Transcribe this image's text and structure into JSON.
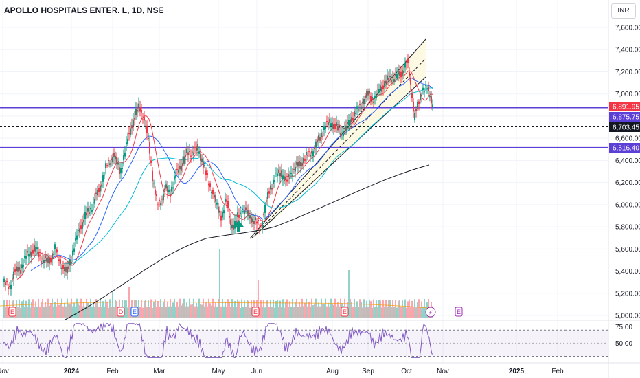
{
  "header": {
    "title": "APOLLO HOSPITALS ENTER. L, 1D, NSE",
    "currency": "INR"
  },
  "chart_data": {
    "type": "candlestick",
    "price_axis": {
      "ticks": [
        "7,600.00",
        "7,400.00",
        "7,200.00",
        "7,000.00",
        "6,800.00",
        "6,600.00",
        "6,400.00",
        "6,200.00",
        "6,000.00",
        "5,800.00",
        "5,600.00",
        "5,400.00",
        "5,200.00",
        "5,000.00"
      ],
      "range": [
        4980,
        7720
      ]
    },
    "rsi_axis": {
      "ticks": [
        "75.00",
        "50.00"
      ],
      "range": [
        20,
        85
      ]
    },
    "time_axis": [
      {
        "label": "Nov",
        "bold": false
      },
      {
        "label": "2024",
        "bold": true
      },
      {
        "label": "Feb",
        "bold": false
      },
      {
        "label": "Mar",
        "bold": false
      },
      {
        "label": "May",
        "bold": false
      },
      {
        "label": "Jun",
        "bold": false
      },
      {
        "label": "Aug",
        "bold": false
      },
      {
        "label": "Sep",
        "bold": false
      },
      {
        "label": "Oct",
        "bold": false
      },
      {
        "label": "Nov",
        "bold": false
      },
      {
        "label": "2025",
        "bold": true
      },
      {
        "label": "Feb",
        "bold": false
      }
    ],
    "price_labels": [
      {
        "value": "6,891.95",
        "color": "#f23645"
      },
      {
        "value": "6,875.75",
        "color": "#5b3fd6"
      },
      {
        "value": "6,703.45",
        "color": "#131722"
      },
      {
        "value": "6,516.40",
        "color": "#5b3fd6"
      }
    ],
    "levels": {
      "resistance_1": 6875.75,
      "dashed_level": 6703.45,
      "support_1": 6516.4
    },
    "price_path": [
      [
        0,
        5300
      ],
      [
        8,
        5250
      ],
      [
        15,
        5380
      ],
      [
        25,
        5430
      ],
      [
        35,
        5550
      ],
      [
        45,
        5600
      ],
      [
        55,
        5520
      ],
      [
        65,
        5480
      ],
      [
        75,
        5600
      ],
      [
        85,
        5450
      ],
      [
        92,
        5380
      ],
      [
        100,
        5550
      ],
      [
        110,
        5780
      ],
      [
        120,
        5900
      ],
      [
        130,
        6000
      ],
      [
        140,
        6150
      ],
      [
        150,
        6350
      ],
      [
        160,
        6450
      ],
      [
        170,
        6300
      ],
      [
        178,
        6500
      ],
      [
        185,
        6700
      ],
      [
        192,
        6800
      ],
      [
        198,
        6900
      ],
      [
        205,
        6750
      ],
      [
        212,
        6550
      ],
      [
        218,
        6200
      ],
      [
        224,
        6000
      ],
      [
        230,
        6050
      ],
      [
        236,
        6150
      ],
      [
        242,
        6100
      ],
      [
        250,
        6250
      ],
      [
        258,
        6350
      ],
      [
        266,
        6450
      ],
      [
        274,
        6480
      ],
      [
        282,
        6500
      ],
      [
        290,
        6400
      ],
      [
        298,
        6200
      ],
      [
        306,
        6100
      ],
      [
        312,
        5950
      ],
      [
        318,
        5900
      ],
      [
        324,
        6050
      ],
      [
        330,
        5850
      ],
      [
        336,
        5800
      ],
      [
        342,
        5900
      ],
      [
        350,
        5950
      ],
      [
        358,
        5900
      ],
      [
        366,
        5850
      ],
      [
        374,
        5800
      ],
      [
        380,
        5950
      ],
      [
        388,
        6150
      ],
      [
        396,
        6250
      ],
      [
        404,
        6300
      ],
      [
        412,
        6200
      ],
      [
        420,
        6300
      ],
      [
        428,
        6350
      ],
      [
        436,
        6400
      ],
      [
        444,
        6450
      ],
      [
        452,
        6500
      ],
      [
        460,
        6600
      ],
      [
        468,
        6700
      ],
      [
        476,
        6750
      ],
      [
        484,
        6700
      ],
      [
        492,
        6650
      ],
      [
        500,
        6700
      ],
      [
        508,
        6800
      ],
      [
        516,
        6850
      ],
      [
        524,
        6950
      ],
      [
        532,
        7000
      ],
      [
        540,
        6950
      ],
      [
        548,
        7050
      ],
      [
        556,
        7100
      ],
      [
        564,
        7150
      ],
      [
        572,
        7150
      ],
      [
        580,
        7200
      ],
      [
        588,
        7280
      ],
      [
        594,
        7050
      ],
      [
        598,
        6800
      ],
      [
        604,
        6900
      ],
      [
        610,
        7050
      ],
      [
        616,
        7050
      ],
      [
        622,
        6960
      ],
      [
        626,
        6890
      ]
    ],
    "annotations": [
      "E",
      "D",
      "E",
      "E",
      "E",
      "E"
    ],
    "notes": "Approximate daily price path drawn from visual estimate; x values are bar indices (0 = early Nov 2023)."
  }
}
